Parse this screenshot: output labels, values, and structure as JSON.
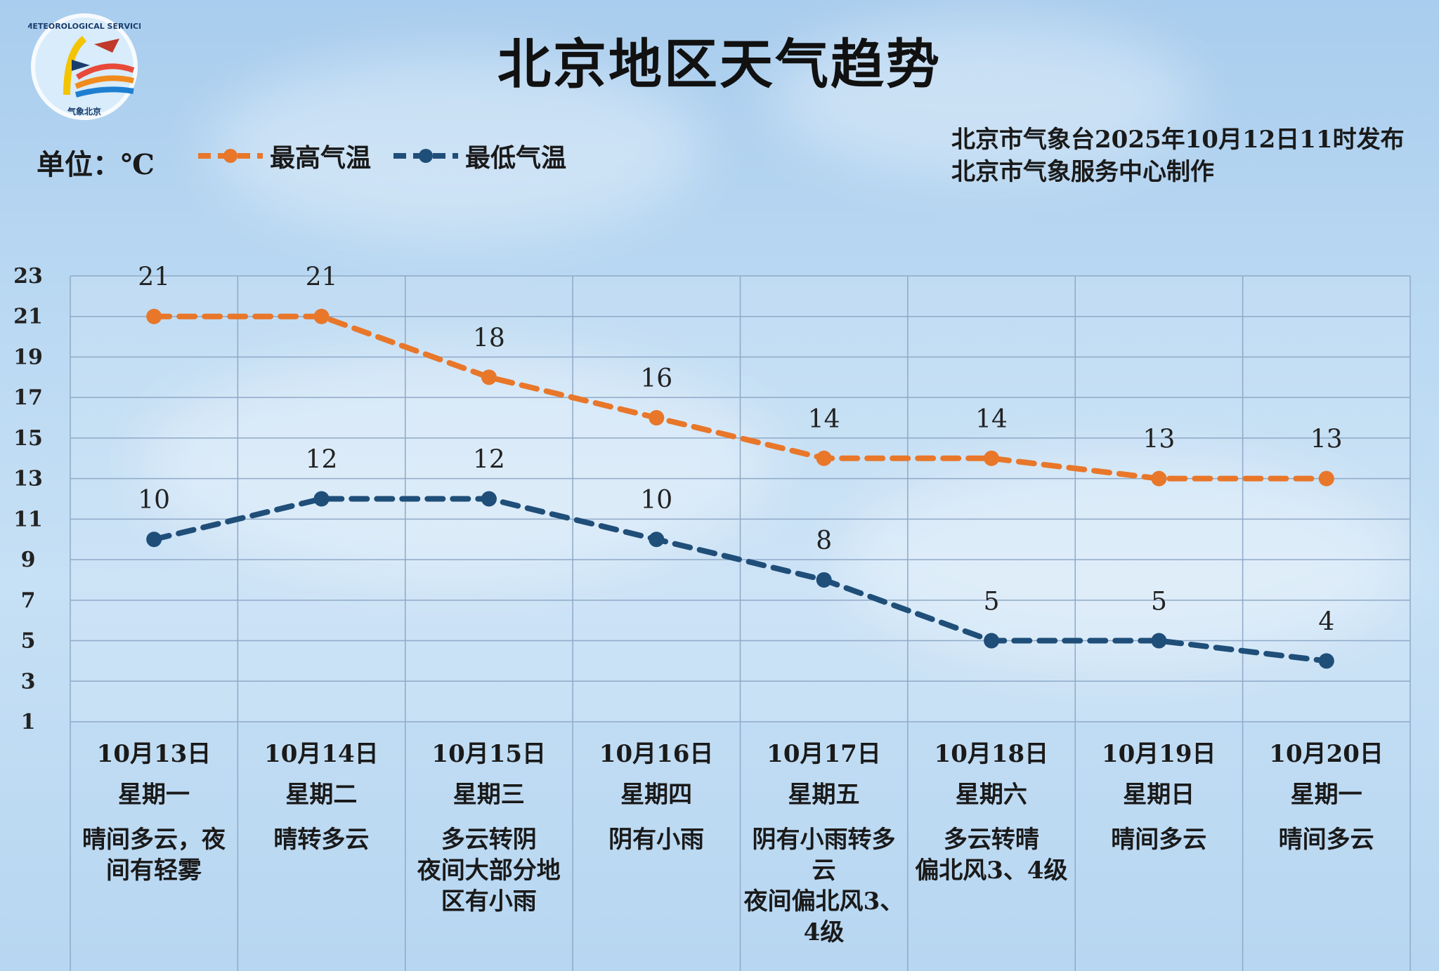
{
  "title": "北京地区天气趋势",
  "logo": {
    "text": "METEOROLOGICAL SERVICE",
    "caption": "气象北京"
  },
  "unit": "单位：℃",
  "issuer": {
    "line1": "北京市气象台2025年10月12日11时发布",
    "line2": "北京市气象服务中心制作"
  },
  "colors": {
    "high": "#e8772a",
    "low": "#1f4e79",
    "grid": "#8fa9c7"
  },
  "days": [
    {
      "date": "10月13日",
      "weekday": "星期一",
      "weather": "晴间多云，夜\n间有轻雾"
    },
    {
      "date": "10月14日",
      "weekday": "星期二",
      "weather": "晴转多云"
    },
    {
      "date": "10月15日",
      "weekday": "星期三",
      "weather": "多云转阴\n夜间大部分地\n区有小雨"
    },
    {
      "date": "10月16日",
      "weekday": "星期四",
      "weather": "阴有小雨"
    },
    {
      "date": "10月17日",
      "weekday": "星期五",
      "weather": "阴有小雨转多\n云\n夜间偏北风3、\n4级"
    },
    {
      "date": "10月18日",
      "weekday": "星期六",
      "weather": "多云转晴\n偏北风3、4级"
    },
    {
      "date": "10月19日",
      "weekday": "星期日",
      "weather": "晴间多云"
    },
    {
      "date": "10月20日",
      "weekday": "星期一",
      "weather": "晴间多云"
    }
  ],
  "chart_data": {
    "type": "line",
    "categories": [
      "10月13日",
      "10月14日",
      "10月15日",
      "10月16日",
      "10月17日",
      "10月18日",
      "10月19日",
      "10月20日"
    ],
    "series": [
      {
        "name": "最高气温",
        "values": [
          21,
          21,
          18,
          16,
          14,
          14,
          13,
          13
        ],
        "color": "#e8772a"
      },
      {
        "name": "最低气温",
        "values": [
          10,
          12,
          12,
          10,
          8,
          5,
          5,
          4
        ],
        "color": "#1f4e79"
      }
    ],
    "ylim": [
      1,
      23
    ],
    "yticks": [
      1,
      3,
      5,
      7,
      9,
      11,
      13,
      15,
      17,
      19,
      21,
      23
    ],
    "grid": true,
    "line_style": "dashed",
    "legend": "top-left"
  }
}
